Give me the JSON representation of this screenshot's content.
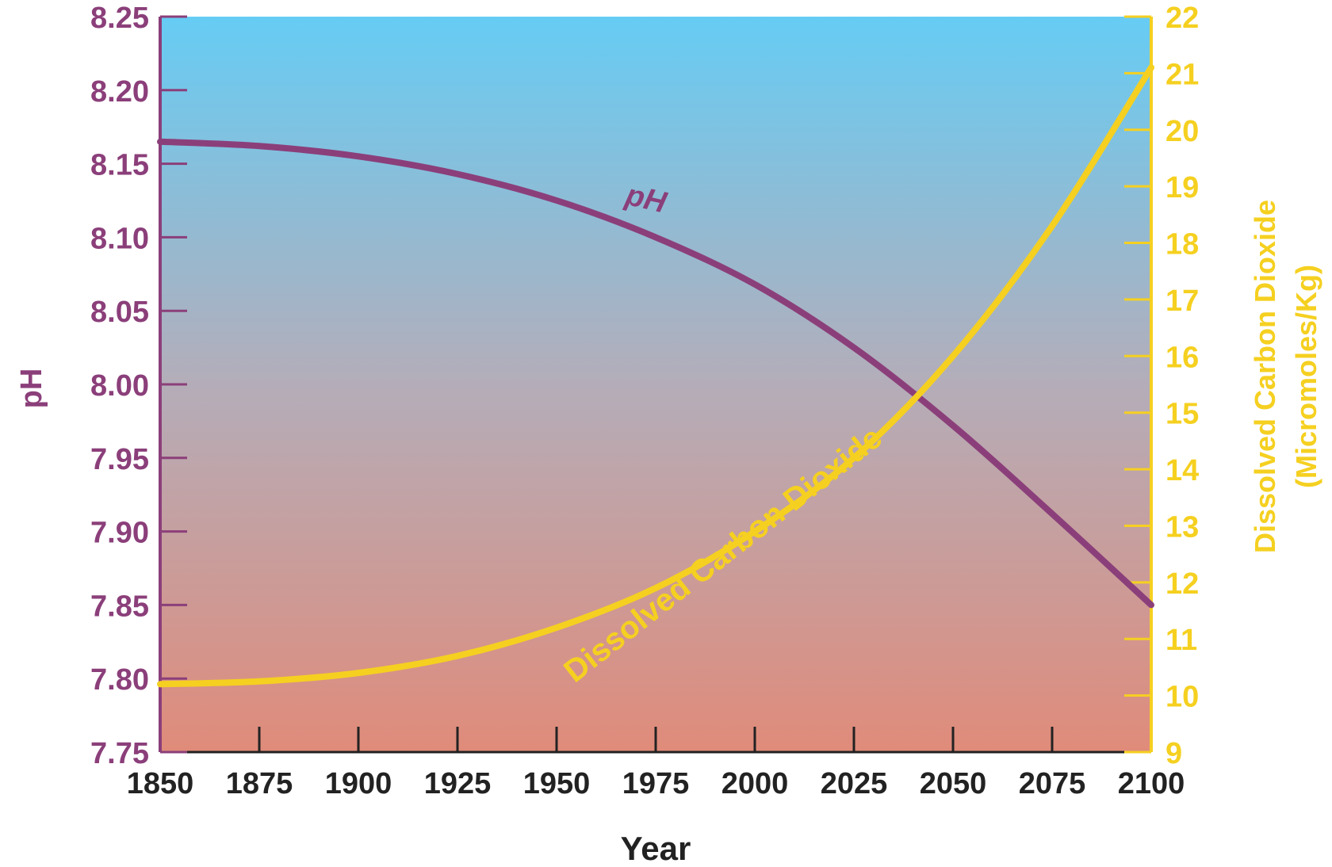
{
  "chart_data": {
    "type": "line",
    "xlabel": "Year",
    "ylabel_left": "pH",
    "ylabel_right": [
      "Dissolved Carbon Dioxide",
      "(Micromoles/Kg)"
    ],
    "xlim": [
      1850,
      2100
    ],
    "ylim_left": [
      7.75,
      8.25
    ],
    "ylim_right": [
      9,
      22
    ],
    "x_ticks": [
      "1850",
      "1875",
      "1900",
      "1925",
      "1950",
      "1975",
      "2000",
      "2025",
      "2050",
      "2075",
      "2100"
    ],
    "y_left_ticks": [
      "8.25",
      "8.20",
      "8.15",
      "8.10",
      "8.05",
      "8.00",
      "7.95",
      "7.90",
      "7.85",
      "7.80",
      "7.75"
    ],
    "y_right_ticks": [
      "22",
      "21",
      "20",
      "19",
      "18",
      "17",
      "16",
      "15",
      "14",
      "13",
      "12",
      "11",
      "10",
      "9"
    ],
    "grid": false,
    "colors": {
      "ph": "#8b3f7a",
      "co2": "#f5d020",
      "background_top": "#66ccf4",
      "background_bottom": "#e08b7a"
    },
    "series": [
      {
        "name": "pH",
        "axis": "left",
        "x": [
          1850,
          1875,
          1900,
          1925,
          1950,
          1975,
          2000,
          2025,
          2050,
          2075,
          2100
        ],
        "y": [
          8.165,
          8.162,
          8.155,
          8.143,
          8.125,
          8.1,
          8.068,
          8.025,
          7.972,
          7.912,
          7.85
        ]
      },
      {
        "name": "Dissolved Carbon Dioxide",
        "axis": "right",
        "x": [
          1850,
          1875,
          1900,
          1925,
          1950,
          1975,
          2000,
          2025,
          2050,
          2075,
          2100
        ],
        "y": [
          10.2,
          10.25,
          10.4,
          10.7,
          11.2,
          11.9,
          12.9,
          14.2,
          16.0,
          18.3,
          21.1
        ]
      }
    ],
    "annotations": [
      {
        "text": "pH",
        "series": "pH"
      },
      {
        "text": "Dissolved Carbon Dioxide",
        "series": "Dissolved Carbon Dioxide"
      }
    ]
  }
}
